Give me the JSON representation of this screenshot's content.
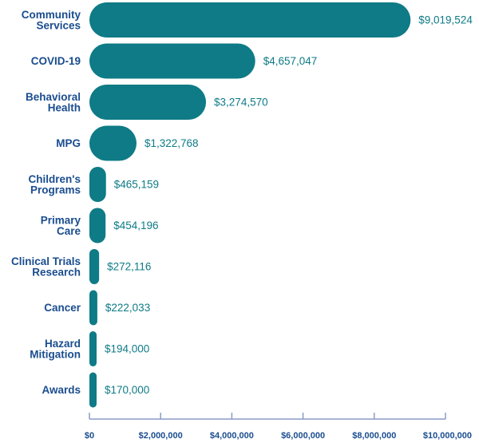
{
  "chart_data": {
    "type": "bar",
    "orientation": "horizontal",
    "categories": [
      [
        "Community",
        "Services"
      ],
      [
        "COVID-19"
      ],
      [
        "Behavioral",
        "Health"
      ],
      [
        "MPG"
      ],
      [
        "Children's",
        "Programs"
      ],
      [
        "Primary",
        "Care"
      ],
      [
        "Clinical Trials",
        "Research"
      ],
      [
        "Cancer"
      ],
      [
        "Hazard",
        "Mitigation"
      ],
      [
        "Awards"
      ]
    ],
    "values": [
      9019524,
      4657047,
      3274570,
      1322768,
      465159,
      454196,
      272116,
      222033,
      194000,
      170000
    ],
    "value_labels": [
      "$9,019,524",
      "$4,657,047",
      "$3,274,570",
      "$1,322,768",
      "$465,159",
      "$454,196",
      "$272,116",
      "$222,033",
      "$194,000",
      "$170,000"
    ],
    "xlim": [
      0,
      10000000
    ],
    "x_ticks": [
      0,
      2000000,
      4000000,
      6000000,
      8000000,
      10000000
    ],
    "x_tick_labels": [
      "$0",
      "$2,000,000",
      "$4,000,000",
      "$6,000,000",
      "$8,000,000",
      "$10,000,000"
    ],
    "grid": false,
    "colors": {
      "bar": "#0e7b86",
      "value_text": "#0e7b86",
      "category_text": "#1a4d8f",
      "axis": "#8a9cc7"
    }
  }
}
